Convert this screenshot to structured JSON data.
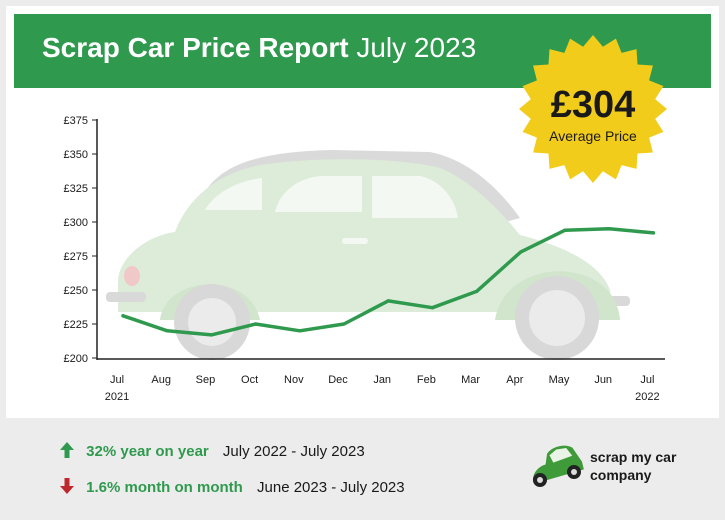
{
  "header": {
    "title_bold": "Scrap Car Price Report",
    "title_light": "July 2023"
  },
  "badge": {
    "price": "£304",
    "label": "Average Price",
    "color": "#f2cc1b"
  },
  "chart_data": {
    "type": "line",
    "categories": [
      "Jul",
      "Aug",
      "Sep",
      "Oct",
      "Nov",
      "Dec",
      "Jan",
      "Feb",
      "Mar",
      "Apr",
      "May",
      "Jun",
      "Jul"
    ],
    "category_years": [
      "2021",
      "",
      "",
      "",
      "",
      "",
      "",
      "",
      "",
      "",
      "",
      "",
      "2022"
    ],
    "series": [
      {
        "values": [
          231,
          220,
          217,
          225,
          220,
          225,
          242,
          237,
          249,
          278,
          294,
          295,
          292
        ],
        "color": "#2f9a4e"
      }
    ],
    "yticks": [
      "£375",
      "£350",
      "£325",
      "£300",
      "£275",
      "£250",
      "£225",
      "£200"
    ],
    "ylim": [
      200,
      375
    ],
    "grid": false
  },
  "footer": {
    "yoy_pct": "32% year on year",
    "yoy_range": "July 2022 - July 2023",
    "mom_pct": "1.6% month on month",
    "mom_range": "June 2023 - July 2023",
    "up_color": "#2f9a4e",
    "down_color": "#c0272d"
  },
  "logo": {
    "line1": "scrap my car",
    "line2": "company",
    "icon": "green-car-icon"
  }
}
